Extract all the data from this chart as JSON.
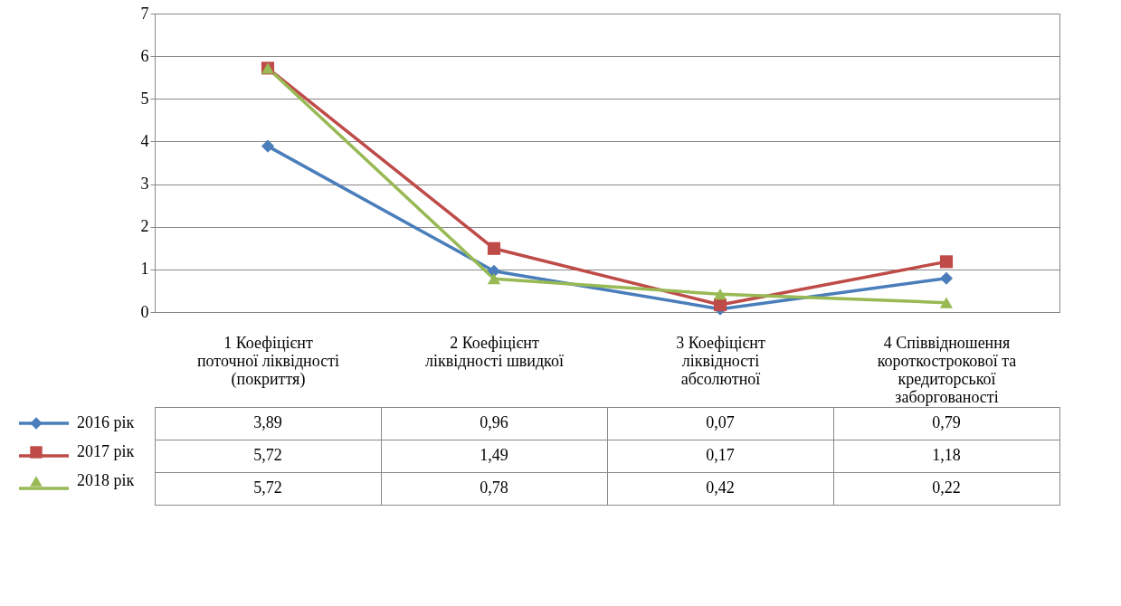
{
  "chart_data": {
    "type": "line",
    "categories": [
      "1 Коефіцієнт поточної ліквідності (покриття)",
      "2 Коефіцієнт ліквідності швидкої",
      "3 Коефіцієнт ліквідності абсолютної",
      "4 Співвідношення короткострокової та кредиторської заборгованості"
    ],
    "series": [
      {
        "name": "2016 рік",
        "color": "#4a7ebb",
        "marker": "diamond",
        "values": [
          3.89,
          0.96,
          0.07,
          0.79
        ],
        "value_labels": [
          "3,89",
          "0,96",
          "0,07",
          "0,79"
        ]
      },
      {
        "name": "2017 рік",
        "color": "#be4b48",
        "marker": "square",
        "values": [
          5.72,
          1.49,
          0.17,
          1.18
        ],
        "value_labels": [
          "5,72",
          "1,49",
          "0,17",
          "1,18"
        ]
      },
      {
        "name": "2018 рік",
        "color": "#98b954",
        "marker": "triangle",
        "values": [
          5.72,
          0.78,
          0.42,
          0.22
        ],
        "value_labels": [
          "5,72",
          "0,78",
          "0,42",
          "0,22"
        ]
      }
    ],
    "ylim": [
      0,
      7
    ],
    "yticks": [
      0,
      1,
      2,
      3,
      4,
      5,
      6,
      7
    ],
    "grid": "y",
    "legend": "bottom left",
    "line_style": "solid"
  }
}
